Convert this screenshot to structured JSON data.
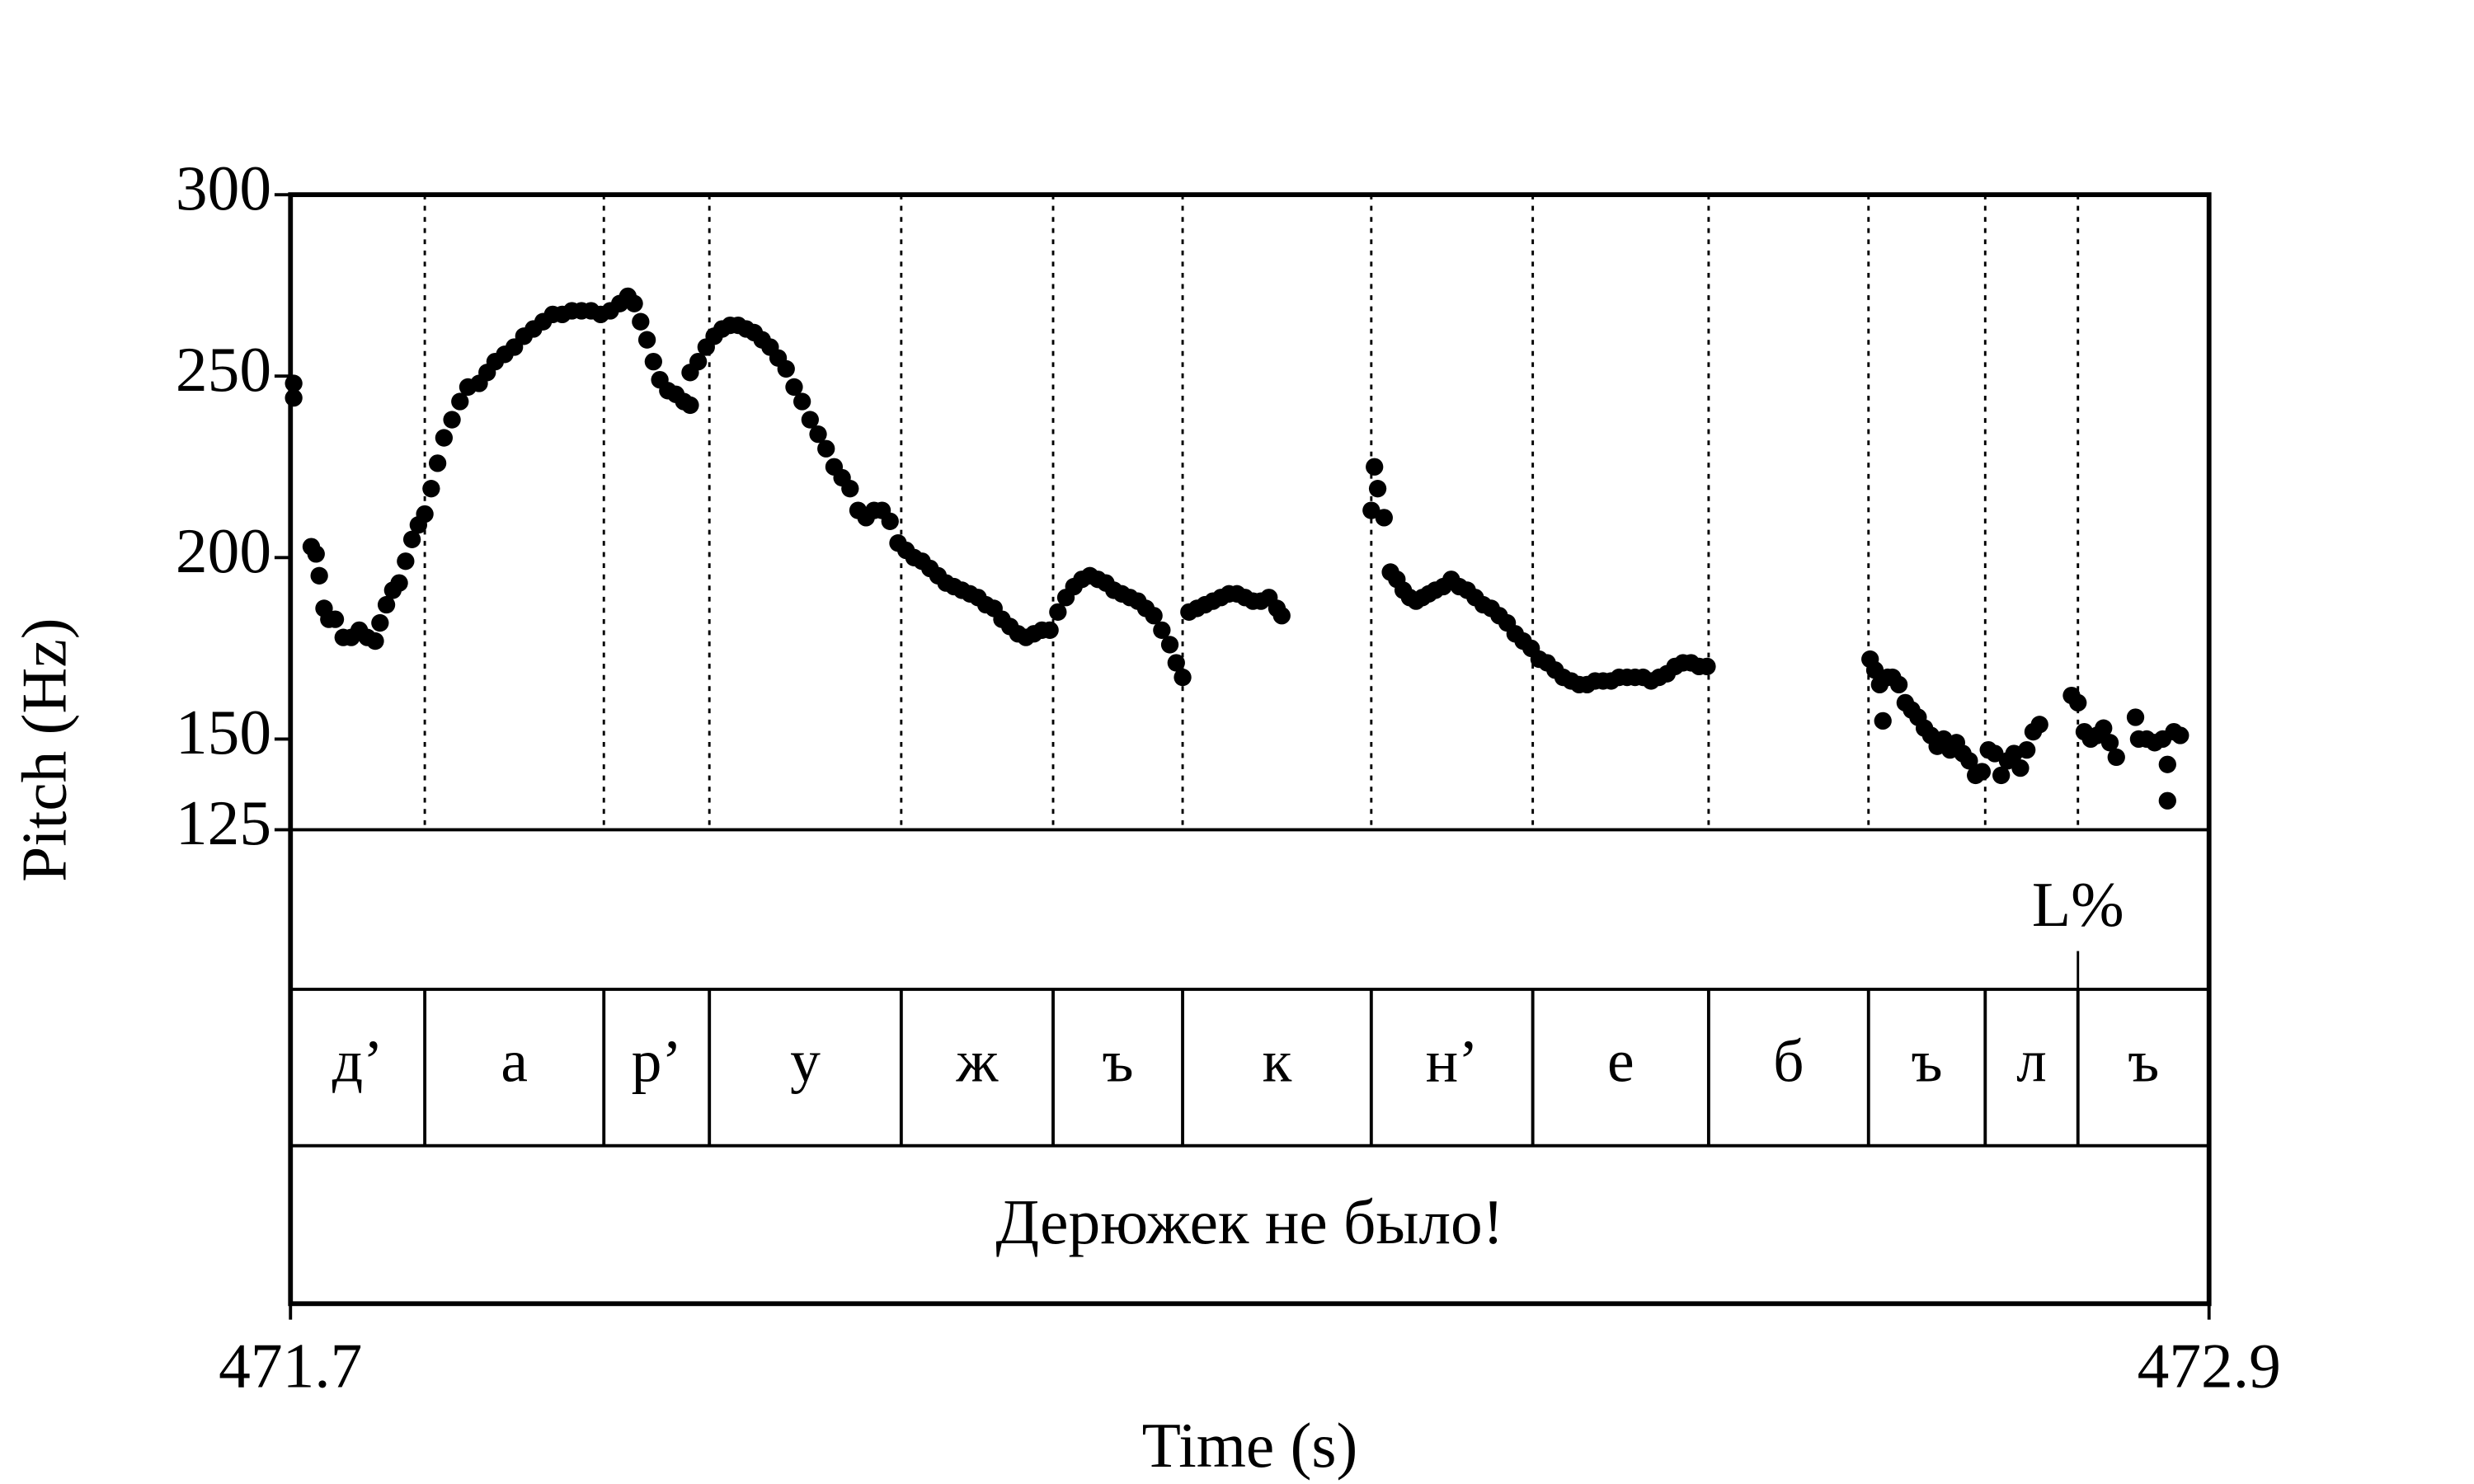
{
  "chart_data": {
    "type": "scatter",
    "ylabel": "Pitch (Hz)",
    "xlabel": "Time (s)",
    "xlim": [
      471.7,
      472.9
    ],
    "xticks": [
      471.7,
      472.9
    ],
    "ylim": [
      125,
      300
    ],
    "yticks": [
      125,
      150,
      200,
      250,
      300
    ],
    "color": "#000000",
    "x": [
      471.702,
      471.702,
      471.713,
      471.716,
      471.718,
      471.721,
      471.724,
      471.728,
      471.733,
      471.738,
      471.743,
      471.748,
      471.753,
      471.756,
      471.76,
      471.764,
      471.768,
      471.772,
      471.776,
      471.78,
      471.784,
      471.788,
      471.792,
      471.796,
      471.801,
      471.806,
      471.811,
      471.818,
      471.823,
      471.828,
      471.834,
      471.84,
      471.846,
      471.852,
      471.858,
      471.864,
      471.87,
      471.876,
      471.882,
      471.888,
      471.894,
      471.9,
      471.906,
      471.911,
      471.915,
      471.919,
      471.923,
      471.927,
      471.931,
      471.936,
      471.941,
      471.946,
      471.95,
      471.95,
      471.955,
      471.96,
      471.965,
      471.97,
      471.975,
      471.98,
      471.985,
      471.99,
      471.995,
      472.0,
      472.005,
      472.01,
      472.015,
      472.02,
      472.025,
      472.03,
      472.035,
      472.04,
      472.045,
      472.05,
      472.055,
      472.06,
      472.065,
      472.07,
      472.075,
      472.08,
      472.085,
      472.09,
      472.095,
      472.1,
      472.105,
      472.11,
      472.115,
      472.12,
      472.125,
      472.13,
      472.135,
      472.14,
      472.145,
      472.15,
      472.155,
      472.16,
      472.165,
      472.17,
      472.175,
      472.18,
      472.185,
      472.19,
      472.195,
      472.2,
      472.205,
      472.21,
      472.215,
      472.22,
      472.225,
      472.23,
      472.235,
      472.24,
      472.245,
      472.25,
      472.254,
      472.258,
      472.262,
      472.267,
      472.272,
      472.277,
      472.282,
      472.287,
      472.292,
      472.297,
      472.302,
      472.307,
      472.312,
      472.317,
      472.32,
      472.376,
      472.378,
      472.38,
      472.384,
      472.388,
      472.392,
      472.396,
      472.4,
      472.404,
      472.408,
      472.412,
      472.416,
      472.421,
      472.426,
      472.431,
      472.436,
      472.441,
      472.446,
      472.451,
      472.456,
      472.461,
      472.466,
      472.471,
      472.476,
      472.481,
      472.486,
      472.491,
      472.496,
      472.501,
      472.506,
      472.511,
      472.516,
      472.521,
      472.526,
      472.531,
      472.536,
      472.541,
      472.546,
      472.551,
      472.556,
      472.561,
      472.566,
      472.571,
      472.576,
      472.581,
      472.586,
      472.688,
      472.691,
      472.694,
      472.696,
      472.699,
      472.702,
      472.706,
      472.71,
      472.714,
      472.718,
      472.722,
      472.726,
      472.73,
      472.734,
      472.738,
      472.742,
      472.746,
      472.75,
      472.754,
      472.758,
      472.762,
      472.766,
      472.77,
      472.774,
      472.778,
      472.782,
      472.786,
      472.79,
      472.794,
      472.814,
      472.818,
      472.822,
      472.826,
      472.83,
      472.834,
      472.838,
      472.842,
      472.854,
      472.856,
      472.861,
      472.866,
      472.871,
      472.874,
      472.874,
      472.878,
      472.882
    ],
    "values": [
      248,
      244,
      203,
      201,
      195,
      186,
      183,
      183,
      178,
      178,
      180,
      178,
      177,
      182,
      187,
      191,
      193,
      199,
      205,
      209,
      212,
      219,
      226,
      233,
      238,
      243,
      247,
      248,
      251,
      254,
      256,
      258,
      261,
      263,
      265,
      267,
      267,
      268,
      268,
      268,
      267,
      268,
      270,
      272,
      270,
      265,
      260,
      254,
      249,
      246,
      245,
      243,
      242,
      251,
      254,
      258,
      261,
      263,
      264,
      264,
      263,
      262,
      260,
      258,
      255,
      252,
      247,
      243,
      238,
      234,
      230,
      225,
      222,
      219,
      213,
      211,
      213,
      213,
      210,
      204,
      202,
      200,
      199,
      197,
      195,
      193,
      192,
      191,
      190,
      189,
      187,
      186,
      183,
      181,
      179,
      178,
      179,
      180,
      180,
      185,
      189,
      192,
      194,
      195,
      194,
      193,
      191,
      190,
      189,
      188,
      186,
      184,
      180,
      176,
      171,
      167,
      185,
      186,
      187,
      188,
      189,
      190,
      190,
      189,
      188,
      188,
      189,
      186,
      184,
      213,
      225,
      219,
      211,
      196,
      194,
      191,
      189,
      188,
      189,
      190,
      191,
      192,
      194,
      192,
      191,
      189,
      187,
      186,
      184,
      182,
      179,
      177,
      175,
      172,
      171,
      169,
      167,
      166,
      165,
      165,
      166,
      166,
      166,
      167,
      167,
      167,
      167,
      166,
      167,
      168,
      170,
      171,
      171,
      170,
      170,
      172,
      169,
      165,
      155,
      167,
      167,
      165,
      160,
      158,
      156,
      153,
      151,
      148,
      150,
      147,
      149,
      146,
      144,
      140,
      141,
      147,
      146,
      140,
      144,
      146,
      142,
      147,
      152,
      154,
      162,
      160,
      152,
      150,
      151,
      153,
      149,
      145,
      156,
      150,
      150,
      149,
      150,
      143,
      133,
      152,
      151
    ],
    "tones": [
      {
        "time": 472.818,
        "label": "L%"
      }
    ],
    "boundaries": [
      471.784,
      471.896,
      471.962,
      472.082,
      472.177,
      472.258,
      472.376,
      472.477,
      472.587,
      472.687,
      472.76,
      472.818
    ],
    "segments": [
      "д’",
      "а",
      "р’",
      "у",
      "ж",
      "ъ",
      "к",
      "н’",
      "е",
      "б",
      "ъ",
      "л",
      "ъ"
    ],
    "sentence": "Дерюжек не было!"
  }
}
